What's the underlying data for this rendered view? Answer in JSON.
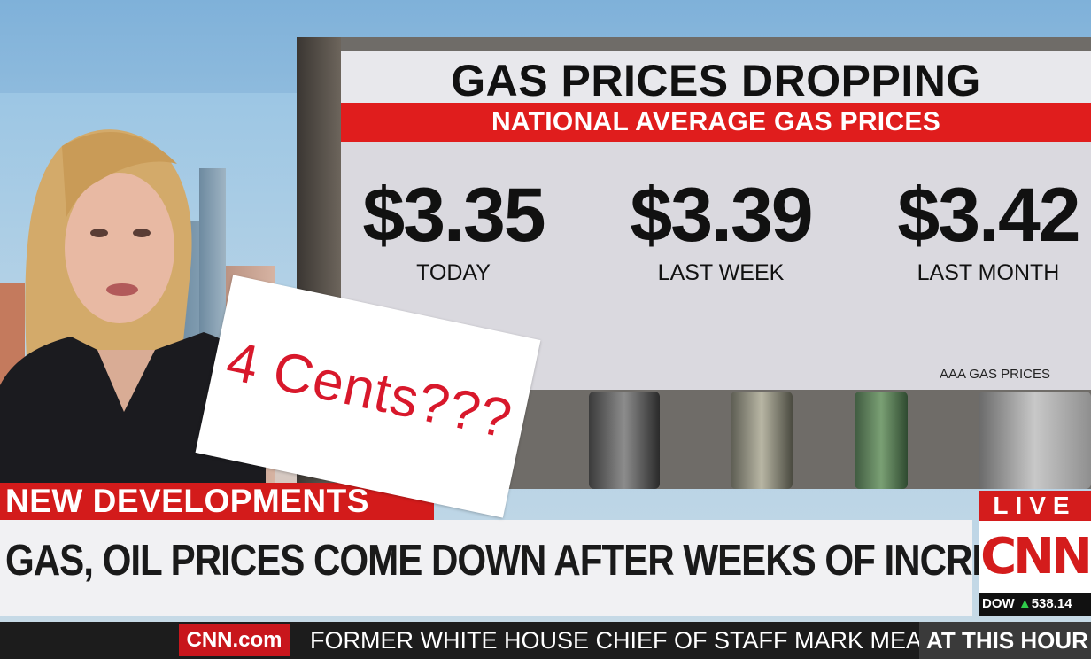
{
  "graphic": {
    "title": "GAS PRICES DROPPING",
    "subtitle": "NATIONAL AVERAGE GAS PRICES",
    "prices": [
      {
        "value": "$3.35",
        "label": "TODAY"
      },
      {
        "value": "$3.39",
        "label": "LAST WEEK"
      },
      {
        "value": "$3.42",
        "label": "LAST MONTH"
      }
    ],
    "source": "AAA GAS PRICES"
  },
  "sticker": {
    "text": "4 Cents???",
    "color": "#d8182b"
  },
  "lower_third": {
    "tag": "NEW DEVELOPMENTS",
    "headline": "GAS, OIL PRICES COME DOWN AFTER WEEKS OF INCREASES"
  },
  "bug": {
    "live": "LIVE",
    "logo": "CNN",
    "dow_label": "DOW",
    "dow_arrow": "▲",
    "dow_value": "538.14"
  },
  "ticker": {
    "site": "CNN.com",
    "text": "FORMER WHITE HOUSE CHIEF OF STAFF MARK MEADOWS",
    "show": "AT THIS HOUR"
  },
  "colors": {
    "brand_red": "#d41c1c",
    "headline_bg": "#f1f1f3",
    "card_bg": "#dad9df"
  }
}
